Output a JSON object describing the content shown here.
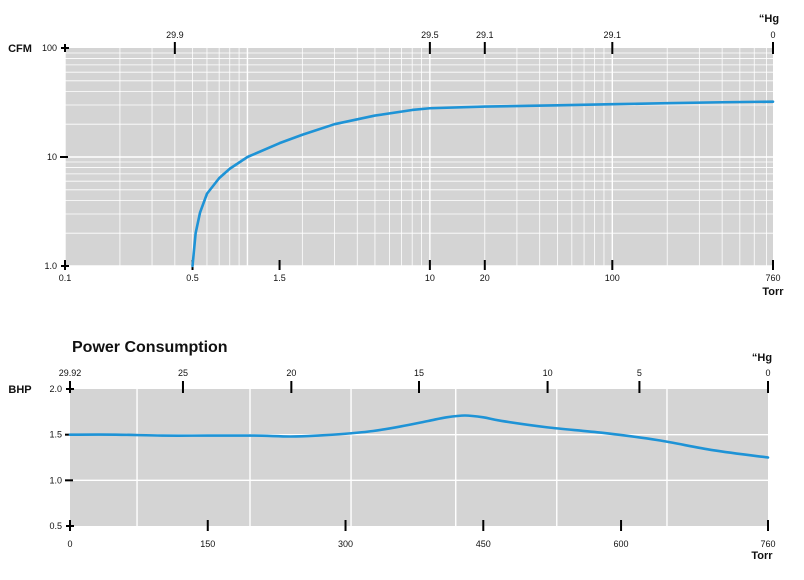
{
  "chart_data": [
    {
      "type": "line",
      "title": "",
      "ylabel": "CFM",
      "xlabel": "Torr",
      "top_axis_unit": "“Hg",
      "x_scale": "log",
      "y_scale": "log",
      "xlim": [
        0.1,
        760
      ],
      "ylim": [
        1,
        100
      ],
      "y_ticks": [
        {
          "value": 100,
          "label": "100"
        },
        {
          "value": 10,
          "label": "10"
        },
        {
          "value": 1,
          "label": "1.0"
        }
      ],
      "x_ticks": [
        {
          "value": 0.1,
          "label": "0.1"
        },
        {
          "value": 0.5,
          "label": "0.5"
        },
        {
          "value": 1.5,
          "label": "1.5"
        },
        {
          "value": 10,
          "label": "10"
        },
        {
          "value": 20,
          "label": "20"
        },
        {
          "value": 100,
          "label": "100"
        },
        {
          "value": 760,
          "label": "760"
        }
      ],
      "top_ticks": [
        {
          "torr": 0.4,
          "label": "29.9"
        },
        {
          "torr": 10,
          "label": "29.5"
        },
        {
          "torr": 20,
          "label": "29.1"
        },
        {
          "torr": 100,
          "label": "29.1"
        },
        {
          "torr": 760,
          "label": "0"
        }
      ],
      "grid": true,
      "line_color": "#1e93d6",
      "background_color": "#d4d4d4",
      "series": [
        {
          "x": [
            0.5,
            0.52,
            0.55,
            0.6,
            0.7,
            0.8,
            1.0,
            1.5,
            2,
            3,
            5,
            8,
            10,
            20,
            50,
            100,
            200,
            400,
            760
          ],
          "y": [
            1.0,
            2.0,
            3.1,
            4.6,
            6.4,
            7.8,
            10.0,
            13.4,
            16.0,
            20.0,
            24.0,
            27.0,
            28.0,
            29.0,
            29.8,
            30.5,
            31.2,
            31.8,
            32.2
          ]
        }
      ]
    },
    {
      "type": "line",
      "title": "Power Consumption",
      "ylabel": "BHP",
      "xlabel": "Torr",
      "top_axis_unit": "“Hg",
      "xlim": [
        0,
        760
      ],
      "ylim": [
        0.5,
        2.0
      ],
      "y_ticks": [
        {
          "value": 2.0,
          "label": "2.0"
        },
        {
          "value": 1.5,
          "label": "1.5"
        },
        {
          "value": 1.0,
          "label": "1.0"
        },
        {
          "value": 0.5,
          "label": "0.5"
        }
      ],
      "x_ticks": [
        {
          "value": 0,
          "label": "0"
        },
        {
          "value": 150,
          "label": "150"
        },
        {
          "value": 300,
          "label": "300"
        },
        {
          "value": 450,
          "label": "450"
        },
        {
          "value": 600,
          "label": "600"
        },
        {
          "value": 760,
          "label": "760"
        }
      ],
      "top_ticks": [
        {
          "torr": 0,
          "label": "29.92"
        },
        {
          "torr": 123,
          "label": "25"
        },
        {
          "torr": 241,
          "label": "20"
        },
        {
          "torr": 380,
          "label": "15"
        },
        {
          "torr": 520,
          "label": "10"
        },
        {
          "torr": 620,
          "label": "5"
        },
        {
          "torr": 760,
          "label": "0"
        }
      ],
      "v_grid_torr": [
        73,
        196,
        306,
        420,
        530,
        650
      ],
      "grid": true,
      "line_color": "#1e93d6",
      "background_color": "#d4d4d4",
      "series": [
        {
          "x": [
            0,
            50,
            100,
            150,
            200,
            240,
            270,
            300,
            330,
            360,
            390,
            410,
            430,
            450,
            470,
            520,
            580,
            640,
            700,
            760
          ],
          "y": [
            1.5,
            1.5,
            1.49,
            1.49,
            1.49,
            1.48,
            1.49,
            1.51,
            1.54,
            1.59,
            1.65,
            1.69,
            1.71,
            1.69,
            1.65,
            1.58,
            1.52,
            1.44,
            1.33,
            1.25
          ]
        }
      ]
    }
  ]
}
